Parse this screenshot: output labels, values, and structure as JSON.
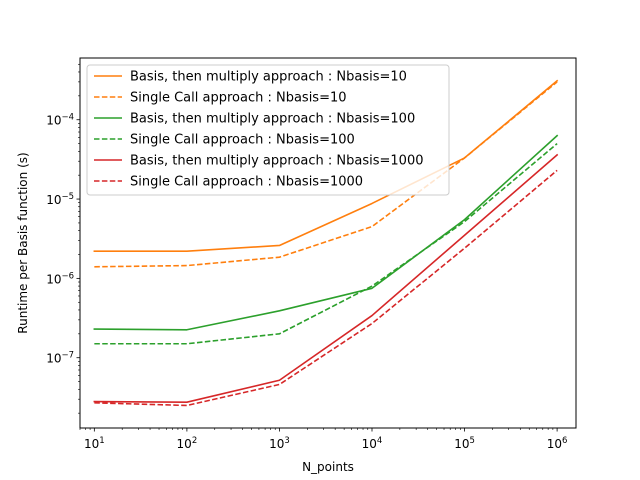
{
  "chart_data": {
    "type": "line",
    "title": "",
    "xlabel": "N_points",
    "ylabel": "Runtime per Basis function (s)",
    "xscale": "log",
    "yscale": "log",
    "xlim": [
      7,
      1600000.0
    ],
    "ylim": [
      1.3e-08,
      0.0006
    ],
    "grid": false,
    "legend_position": "upper-left",
    "x": [
      10,
      100,
      1000,
      10000,
      100000,
      1000000
    ],
    "xticks": [
      {
        "value": 10,
        "label": "10",
        "exp": "1"
      },
      {
        "value": 100,
        "label": "10",
        "exp": "2"
      },
      {
        "value": 1000,
        "label": "10",
        "exp": "3"
      },
      {
        "value": 10000,
        "label": "10",
        "exp": "4"
      },
      {
        "value": 100000,
        "label": "10",
        "exp": "5"
      },
      {
        "value": 1000000,
        "label": "10",
        "exp": "6"
      }
    ],
    "yticks": [
      {
        "value": 1e-07,
        "label": "10",
        "exp": "−7"
      },
      {
        "value": 1e-06,
        "label": "10",
        "exp": "−6"
      },
      {
        "value": 1e-05,
        "label": "10",
        "exp": "−5"
      },
      {
        "value": 0.0001,
        "label": "10",
        "exp": "−4"
      }
    ],
    "series": [
      {
        "name": "Basis, then multiply approach : Nbasis=10",
        "color": "#ff7f0e",
        "dash": "solid",
        "values": [
          2.2e-06,
          2.2e-06,
          2.6e-06,
          8.8e-06,
          3.3e-05,
          0.00031
        ]
      },
      {
        "name": "Single Call approach : Nbasis=10",
        "color": "#ff7f0e",
        "dash": "dashed",
        "values": [
          1.4e-06,
          1.45e-06,
          1.85e-06,
          4.5e-06,
          3.3e-05,
          0.0003
        ]
      },
      {
        "name": "Basis, then multiply approach : Nbasis=100",
        "color": "#2ca02c",
        "dash": "solid",
        "values": [
          2.3e-07,
          2.25e-07,
          3.9e-07,
          7.5e-07,
          5.5e-06,
          6.3e-05
        ]
      },
      {
        "name": "Single Call approach : Nbasis=100",
        "color": "#2ca02c",
        "dash": "dashed",
        "values": [
          1.5e-07,
          1.5e-07,
          2e-07,
          8e-07,
          5.2e-06,
          5e-05
        ]
      },
      {
        "name": "Basis, then multiply approach : Nbasis=1000",
        "color": "#d62728",
        "dash": "solid",
        "values": [
          2.8e-08,
          2.75e-08,
          5.2e-08,
          3.4e-07,
          3.5e-06,
          3.6e-05
        ]
      },
      {
        "name": "Single Call approach : Nbasis=1000",
        "color": "#d62728",
        "dash": "dashed",
        "values": [
          2.7e-08,
          2.5e-08,
          4.6e-08,
          2.7e-07,
          2.4e-06,
          2.3e-05
        ]
      }
    ]
  }
}
